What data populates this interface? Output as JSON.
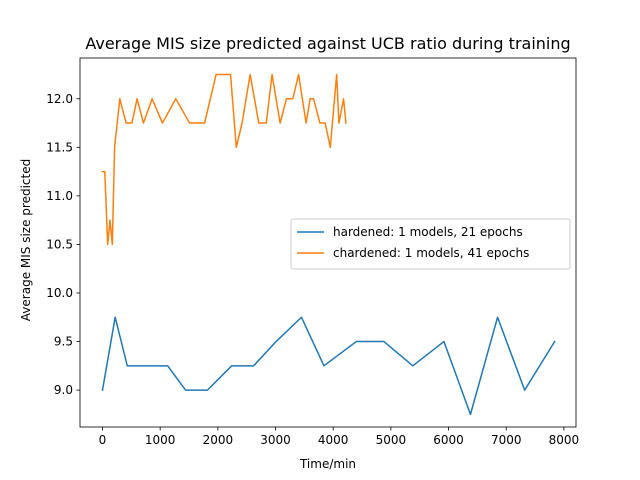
{
  "chart_data": {
    "type": "line",
    "title": "Average MIS size predicted against UCB ratio during training",
    "xlabel": "Time/min",
    "ylabel": "Average MIS size predicted",
    "xlim": [
      -390,
      8210
    ],
    "ylim": [
      8.62,
      12.42
    ],
    "xticks": [
      0,
      1000,
      2000,
      3000,
      4000,
      5000,
      6000,
      7000,
      8000
    ],
    "yticks": [
      9.0,
      9.5,
      10.0,
      10.5,
      11.0,
      11.5,
      12.0
    ],
    "xtick_labels": [
      "0",
      "1000",
      "2000",
      "3000",
      "4000",
      "5000",
      "6000",
      "7000",
      "8000"
    ],
    "ytick_labels": [
      "9.0",
      "9.5",
      "10.0",
      "10.5",
      "11.0",
      "11.5",
      "12.0"
    ],
    "grid": false,
    "legend_position": "center-right",
    "series": [
      {
        "name": "hardened: 1 models, 21 epochs",
        "color": "#1f77b4",
        "x": [
          0,
          220,
          430,
          760,
          1130,
          1440,
          1820,
          2240,
          2620,
          3010,
          3450,
          3840,
          4400,
          4880,
          5380,
          5920,
          6380,
          6850,
          7320,
          7840
        ],
        "y": [
          9.0,
          9.75,
          9.25,
          9.25,
          9.25,
          9.0,
          9.0,
          9.25,
          9.25,
          9.5,
          9.75,
          9.25,
          9.5,
          9.5,
          9.25,
          9.5,
          8.75,
          9.75,
          9.0,
          9.5
        ]
      },
      {
        "name": "chardened: 1 models, 41 epochs",
        "color": "#ff7f0e",
        "x": [
          0,
          40,
          90,
          130,
          170,
          210,
          300,
          410,
          510,
          600,
          710,
          860,
          1040,
          1270,
          1510,
          1770,
          1970,
          2050,
          2220,
          2320,
          2420,
          2560,
          2710,
          2840,
          2940,
          3080,
          3190,
          3300,
          3400,
          3530,
          3600,
          3660,
          3770,
          3860,
          3950,
          4060,
          4100,
          4180,
          4220
        ],
        "y": [
          11.25,
          11.25,
          10.5,
          10.75,
          10.5,
          11.5,
          12.0,
          11.75,
          11.75,
          12.0,
          11.75,
          12.0,
          11.75,
          12.0,
          11.75,
          11.75,
          12.25,
          12.25,
          12.25,
          11.5,
          11.75,
          12.25,
          11.75,
          11.75,
          12.25,
          11.75,
          12.0,
          12.0,
          12.25,
          11.75,
          12.0,
          12.0,
          11.75,
          11.75,
          11.5,
          12.25,
          11.75,
          12.0,
          11.75
        ]
      }
    ]
  }
}
